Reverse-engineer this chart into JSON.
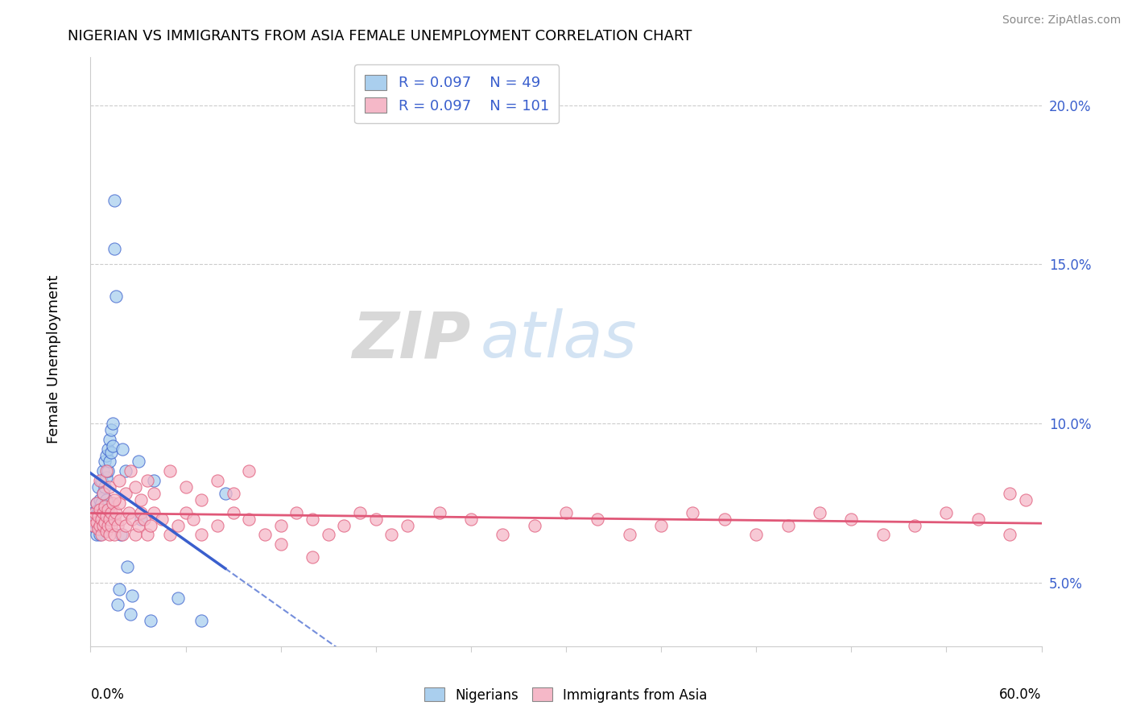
{
  "title": "NIGERIAN VS IMMIGRANTS FROM ASIA FEMALE UNEMPLOYMENT CORRELATION CHART",
  "source": "Source: ZipAtlas.com",
  "ylabel": "Female Unemployment",
  "xlim": [
    0.0,
    0.6
  ],
  "ylim": [
    0.03,
    0.215
  ],
  "yticks": [
    0.05,
    0.1,
    0.15,
    0.2
  ],
  "yticklabels": [
    "5.0%",
    "10.0%",
    "15.0%",
    "20.0%"
  ],
  "legend_r1": "R = 0.097",
  "legend_n1": "N = 49",
  "legend_r2": "R = 0.097",
  "legend_n2": "N = 101",
  "color_nigerian": "#aacfee",
  "color_asian": "#f5b8c8",
  "color_nigerian_line": "#3a5fcd",
  "color_asian_line": "#e05878",
  "nigerian_x": [
    0.001,
    0.002,
    0.003,
    0.003,
    0.004,
    0.004,
    0.005,
    0.005,
    0.005,
    0.006,
    0.006,
    0.006,
    0.007,
    0.007,
    0.007,
    0.008,
    0.008,
    0.008,
    0.009,
    0.009,
    0.01,
    0.01,
    0.01,
    0.011,
    0.011,
    0.012,
    0.012,
    0.013,
    0.013,
    0.014,
    0.014,
    0.015,
    0.015,
    0.016,
    0.017,
    0.018,
    0.019,
    0.02,
    0.022,
    0.023,
    0.025,
    0.026,
    0.03,
    0.032,
    0.038,
    0.04,
    0.055,
    0.07,
    0.085
  ],
  "nigerian_y": [
    0.068,
    0.072,
    0.071,
    0.069,
    0.075,
    0.065,
    0.08,
    0.073,
    0.068,
    0.076,
    0.07,
    0.065,
    0.082,
    0.075,
    0.068,
    0.085,
    0.078,
    0.072,
    0.088,
    0.08,
    0.09,
    0.083,
    0.076,
    0.092,
    0.085,
    0.095,
    0.088,
    0.098,
    0.091,
    0.1,
    0.093,
    0.17,
    0.155,
    0.14,
    0.043,
    0.048,
    0.065,
    0.092,
    0.085,
    0.055,
    0.04,
    0.046,
    0.088,
    0.07,
    0.038,
    0.082,
    0.045,
    0.038,
    0.078
  ],
  "asian_x": [
    0.001,
    0.002,
    0.003,
    0.004,
    0.004,
    0.005,
    0.005,
    0.006,
    0.006,
    0.007,
    0.007,
    0.008,
    0.008,
    0.009,
    0.009,
    0.01,
    0.01,
    0.011,
    0.011,
    0.012,
    0.012,
    0.013,
    0.013,
    0.014,
    0.015,
    0.015,
    0.016,
    0.017,
    0.018,
    0.019,
    0.02,
    0.022,
    0.024,
    0.026,
    0.028,
    0.03,
    0.032,
    0.034,
    0.036,
    0.038,
    0.04,
    0.045,
    0.05,
    0.055,
    0.06,
    0.065,
    0.07,
    0.08,
    0.09,
    0.1,
    0.11,
    0.12,
    0.13,
    0.14,
    0.15,
    0.16,
    0.17,
    0.18,
    0.19,
    0.2,
    0.22,
    0.24,
    0.26,
    0.28,
    0.3,
    0.32,
    0.34,
    0.36,
    0.38,
    0.4,
    0.42,
    0.44,
    0.46,
    0.48,
    0.5,
    0.52,
    0.54,
    0.56,
    0.58,
    0.59,
    0.006,
    0.008,
    0.01,
    0.012,
    0.015,
    0.018,
    0.022,
    0.025,
    0.028,
    0.032,
    0.036,
    0.04,
    0.05,
    0.06,
    0.07,
    0.08,
    0.09,
    0.1,
    0.12,
    0.14,
    0.58
  ],
  "asian_y": [
    0.07,
    0.068,
    0.072,
    0.069,
    0.075,
    0.071,
    0.067,
    0.073,
    0.068,
    0.07,
    0.065,
    0.072,
    0.068,
    0.074,
    0.069,
    0.071,
    0.066,
    0.073,
    0.068,
    0.07,
    0.065,
    0.072,
    0.068,
    0.075,
    0.07,
    0.065,
    0.072,
    0.068,
    0.075,
    0.07,
    0.065,
    0.068,
    0.072,
    0.07,
    0.065,
    0.068,
    0.072,
    0.07,
    0.065,
    0.068,
    0.072,
    0.07,
    0.065,
    0.068,
    0.072,
    0.07,
    0.065,
    0.068,
    0.072,
    0.07,
    0.065,
    0.068,
    0.072,
    0.07,
    0.065,
    0.068,
    0.072,
    0.07,
    0.065,
    0.068,
    0.072,
    0.07,
    0.065,
    0.068,
    0.072,
    0.07,
    0.065,
    0.068,
    0.072,
    0.07,
    0.065,
    0.068,
    0.072,
    0.07,
    0.065,
    0.068,
    0.072,
    0.07,
    0.065,
    0.076,
    0.082,
    0.078,
    0.085,
    0.08,
    0.076,
    0.082,
    0.078,
    0.085,
    0.08,
    0.076,
    0.082,
    0.078,
    0.085,
    0.08,
    0.076,
    0.082,
    0.078,
    0.085,
    0.062,
    0.058,
    0.078
  ]
}
